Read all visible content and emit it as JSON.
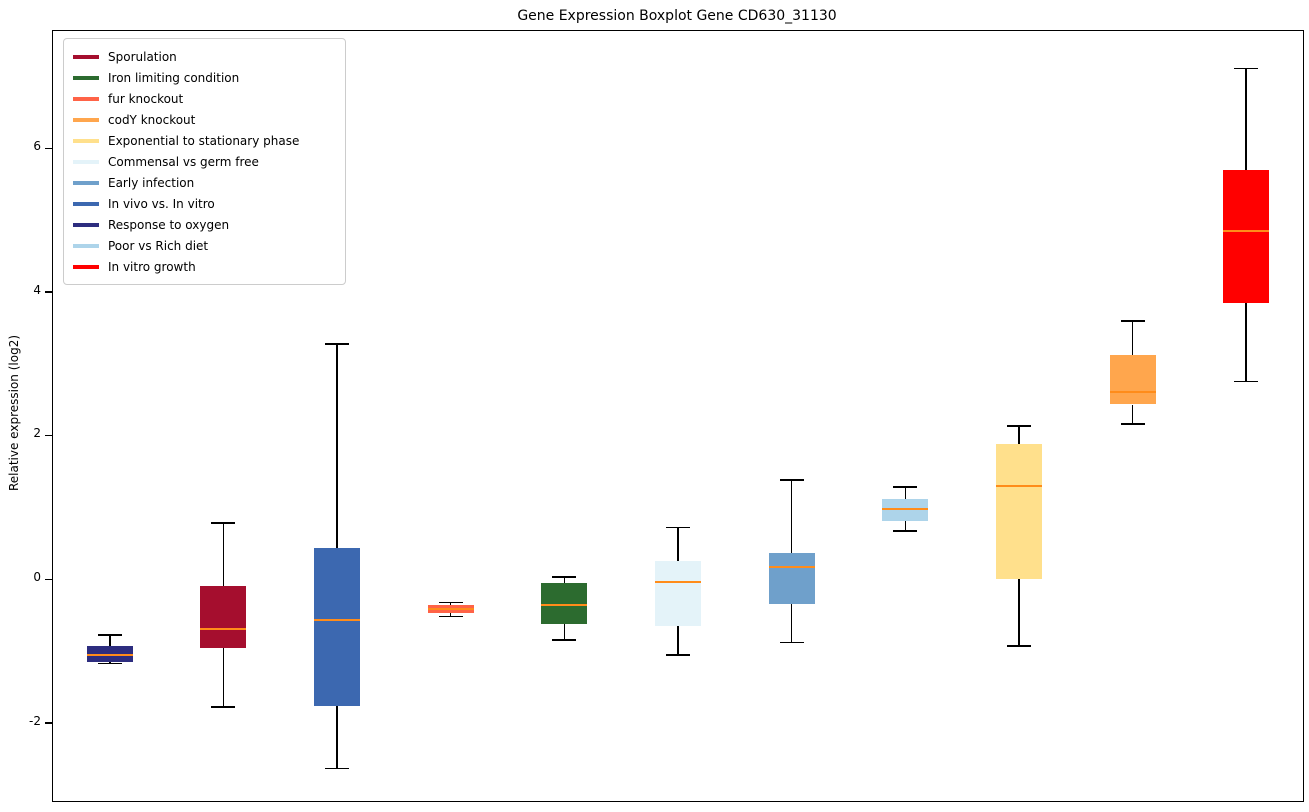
{
  "chart_data": {
    "type": "boxplot",
    "title": "Gene Expression Boxplot Gene CD630_31130",
    "xlabel": "",
    "ylabel": "Relative expression (log2)",
    "yticks": [
      -2,
      0,
      2,
      4,
      6
    ],
    "ylim": [
      -3.09,
      7.63
    ],
    "grid": false,
    "legend_position": "upper left",
    "median_color": "#FF8C1A",
    "whisker_color": "#000000",
    "series": [
      {
        "name": "Response to oxygen",
        "color": "#2D2D7F",
        "whislo": -1.18,
        "q1": -1.15,
        "med": -1.06,
        "q3": -0.93,
        "whishi": -0.78
      },
      {
        "name": "Sporulation",
        "color": "#A50E2E",
        "whislo": -1.78,
        "q1": -0.96,
        "med": -0.7,
        "q3": -0.1,
        "whishi": 0.78
      },
      {
        "name": "In vivo vs. In vitro",
        "color": "#3C68B0",
        "whislo": -2.64,
        "q1": -1.77,
        "med": -0.57,
        "q3": 0.43,
        "whishi": 3.27
      },
      {
        "name": "fur knockout",
        "color": "#FF6347",
        "whislo": -0.52,
        "q1": -0.47,
        "med": -0.42,
        "q3": -0.36,
        "whishi": -0.33
      },
      {
        "name": "Iron limiting condition",
        "color": "#2C6B2F",
        "whislo": -0.85,
        "q1": -0.62,
        "med": -0.36,
        "q3": -0.06,
        "whishi": 0.03
      },
      {
        "name": "Commensal vs germ free",
        "color": "#E4F3F9",
        "whislo": -1.06,
        "q1": -0.65,
        "med": -0.04,
        "q3": 0.25,
        "whishi": 0.72
      },
      {
        "name": "Early infection",
        "color": "#6FA0CB",
        "whislo": -0.88,
        "q1": -0.35,
        "med": 0.17,
        "q3": 0.36,
        "whishi": 1.38
      },
      {
        "name": "Poor vs Rich diet",
        "color": "#ADD4EA",
        "whislo": 0.67,
        "q1": 0.81,
        "med": 0.97,
        "q3": 1.11,
        "whishi": 1.28
      },
      {
        "name": "Exponential to stationary phase",
        "color": "#FFE08C",
        "whislo": -0.93,
        "q1": 0.0,
        "med": 1.29,
        "q3": 1.88,
        "whishi": 2.13
      },
      {
        "name": "codY knockout",
        "color": "#FFA64D",
        "whislo": 2.16,
        "q1": 2.43,
        "med": 2.6,
        "q3": 3.12,
        "whishi": 3.59
      },
      {
        "name": "In vitro growth",
        "color": "#FF0000",
        "whislo": 2.75,
        "q1": 3.84,
        "med": 4.84,
        "q3": 5.7,
        "whishi": 7.11
      }
    ]
  },
  "legend": {
    "order": [
      "Sporulation",
      "Iron limiting condition",
      "fur knockout",
      "codY knockout",
      "Exponential to stationary phase",
      "Commensal vs germ free",
      "Early infection",
      "In vivo vs. In vitro",
      "Response to oxygen",
      "Poor vs Rich diet",
      "In vitro growth"
    ]
  }
}
